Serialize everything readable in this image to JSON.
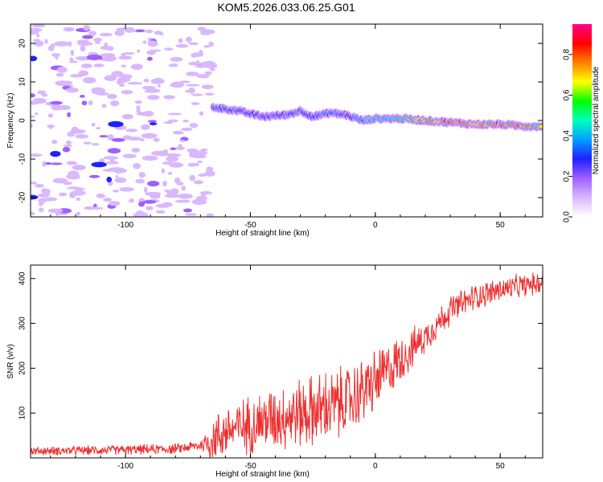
{
  "page": {
    "title": "KOM5.2026.033.06.25.G01"
  },
  "chart_data": [
    {
      "type": "heatmap",
      "xlabel": "Height of straight line (km)",
      "ylabel": "Frequency (Hz)",
      "xlim": [
        -138,
        67
      ],
      "ylim": [
        -25,
        25
      ],
      "xticks": [
        -100,
        -50,
        0,
        50
      ],
      "yticks": [
        -20,
        -10,
        0,
        10,
        20
      ],
      "colorbar": {
        "label": "Normalized spectral amplitude",
        "range": [
          0,
          0.95
        ],
        "ticks": [
          0.0,
          0.2,
          0.4,
          0.6,
          0.8
        ],
        "colors": [
          "#ffffff",
          "#d9b8ff",
          "#a060ff",
          "#2020ff",
          "#00a0ff",
          "#00ffc0",
          "#00ff00",
          "#ffff00",
          "#ff8000",
          "#ff0000",
          "#ff0090"
        ]
      },
      "noise_region_x": [
        -138,
        -65
      ],
      "signal_track": {
        "x": [
          -65,
          -55,
          -45,
          -35,
          -30,
          -25,
          -18,
          -12,
          -5,
          0,
          10,
          20,
          30,
          40,
          50,
          60,
          67
        ],
        "freq_hz": [
          3.5,
          2.5,
          1.0,
          1.5,
          2.5,
          1.0,
          2.0,
          1.5,
          0.0,
          0.5,
          0.5,
          0.0,
          -0.5,
          -1.0,
          -1.0,
          -1.5,
          -1.5
        ],
        "amplitude": [
          0.35,
          0.3,
          0.3,
          0.3,
          0.35,
          0.3,
          0.35,
          0.3,
          0.4,
          0.45,
          0.55,
          0.65,
          0.75,
          0.8,
          0.75,
          0.7,
          0.6
        ]
      }
    },
    {
      "type": "line",
      "xlabel": "Height of straight line (km)",
      "ylabel": "SNR (v/v)",
      "xlim": [
        -138,
        67
      ],
      "ylim": [
        0,
        430
      ],
      "xticks": [
        -100,
        -50,
        0,
        50
      ],
      "yticks": [
        100,
        200,
        300,
        400
      ],
      "color": "#ee3030",
      "trend": {
        "x": [
          -138,
          -100,
          -80,
          -70,
          -65,
          -60,
          -50,
          -40,
          -30,
          -20,
          -10,
          0,
          10,
          20,
          30,
          40,
          50,
          60,
          67
        ],
        "y": [
          15,
          18,
          20,
          28,
          40,
          60,
          75,
          90,
          100,
          110,
          130,
          170,
          220,
          270,
          330,
          360,
          375,
          385,
          390
        ]
      },
      "spread": {
        "x": [
          -138,
          -70,
          -65,
          -40,
          -20,
          0,
          20,
          40,
          67
        ],
        "y": [
          8,
          10,
          45,
          60,
          70,
          60,
          30,
          25,
          20
        ]
      }
    }
  ]
}
